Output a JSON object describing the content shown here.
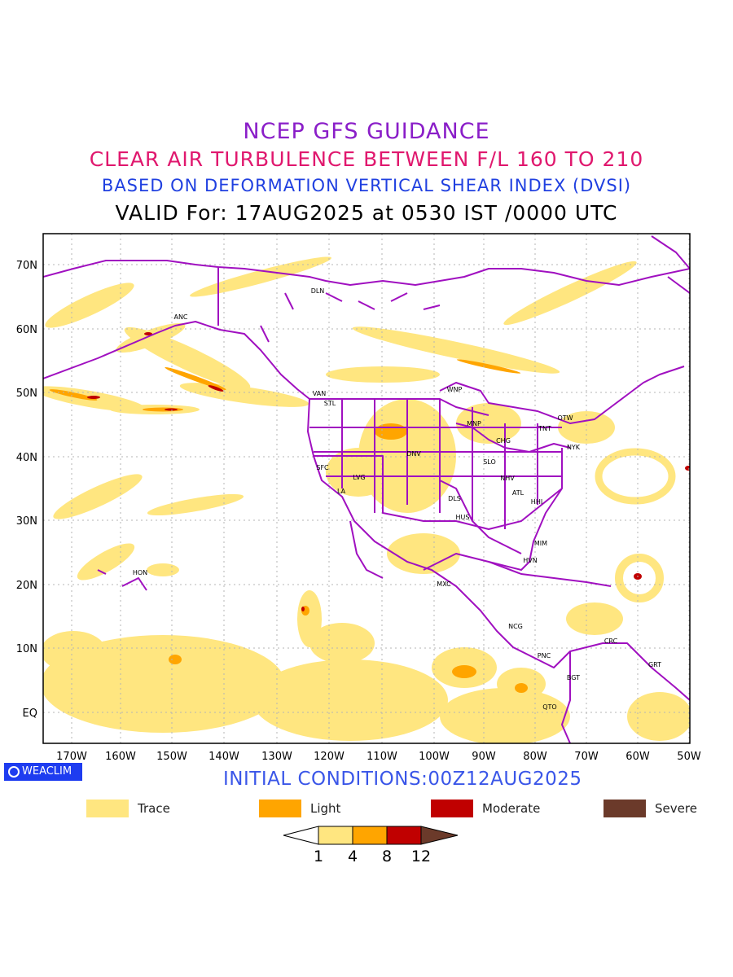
{
  "titles": {
    "line1": "NCEP GFS GUIDANCE",
    "line2": "CLEAR AIR TURBULENCE BETWEEN F/L 160 TO 210",
    "line3": "BASED ON DEFORMATION VERTICAL SHEAR INDEX (DVSI)",
    "line4": "VALID For: 17AUG2025 at 0530 IST /0000 UTC"
  },
  "map": {
    "lat_labels": [
      "70N",
      "60N",
      "50N",
      "40N",
      "30N",
      "20N",
      "10N",
      "EQ"
    ],
    "lon_labels": [
      "170W",
      "160W",
      "150W",
      "140W",
      "130W",
      "120W",
      "110W",
      "100W",
      "90W",
      "80W",
      "70W",
      "60W",
      "50W"
    ],
    "stations": [
      "DLN",
      "ANC",
      "VAN",
      "STL",
      "WNP",
      "MNP",
      "OTW",
      "TNT",
      "NYK",
      "CHG",
      "DNV",
      "SFC",
      "LVG",
      "SLO",
      "NHV",
      "LA",
      "ATL",
      "DLS",
      "HHI",
      "HUS",
      "MIM",
      "HVN",
      "HON",
      "MXC",
      "NCG",
      "CRC",
      "PNC",
      "GRT",
      "BGT",
      "QTO"
    ]
  },
  "branding": {
    "badge": "WEACLIM"
  },
  "initial_conditions": "INITIAL CONDITIONS:00Z12AUG2025",
  "legend": [
    {
      "label": "Trace",
      "color": "#ffe680"
    },
    {
      "label": "Light",
      "color": "#ffa500"
    },
    {
      "label": "Moderate",
      "color": "#c00000"
    },
    {
      "label": "Severe",
      "color": "#6b3a2a"
    }
  ],
  "colorbar": {
    "ticks": [
      "1",
      "4",
      "8",
      "12"
    ],
    "colors": [
      "#ffffff",
      "#ffe680",
      "#ffa500",
      "#c00000",
      "#6b3a2a"
    ]
  },
  "colors": {
    "coast": "#a010c0",
    "trace": "#ffe680",
    "light": "#ffa500",
    "moderate": "#c00000"
  }
}
